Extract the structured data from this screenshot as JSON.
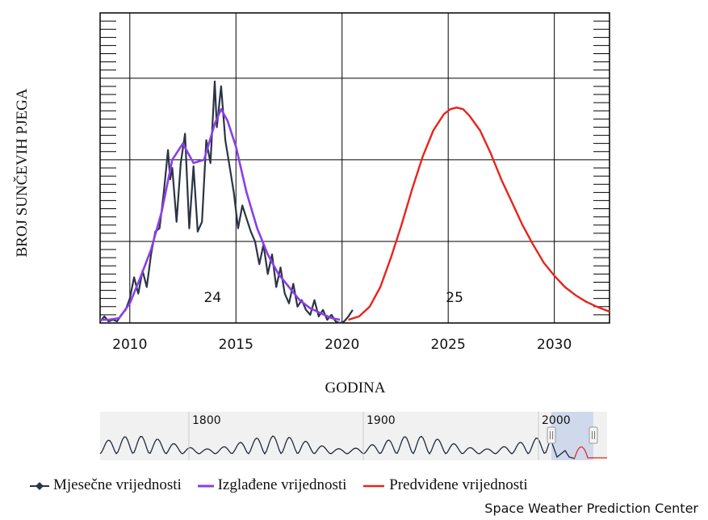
{
  "chart_data": {
    "type": "line",
    "xlabel": "GODINA",
    "ylabel": "BROJ SUNČEVIH PJEGA",
    "xlim": [
      2008.6,
      2032.6
    ],
    "ylim": [
      0,
      190
    ],
    "x_ticks": [
      "2010",
      "2015",
      "2020",
      "2025",
      "2030"
    ],
    "cycle_labels": [
      {
        "text": "24",
        "x": 2013.9
      },
      {
        "text": "25",
        "x": 2025.3
      }
    ],
    "series": [
      {
        "name": "Mjesečne vrijednosti",
        "color": "#2b3445",
        "x": [
          2008.6,
          2008.8,
          2009.0,
          2009.2,
          2009.4,
          2009.6,
          2009.8,
          2010.0,
          2010.2,
          2010.4,
          2010.6,
          2010.8,
          2011.0,
          2011.2,
          2011.4,
          2011.6,
          2011.8,
          2011.9,
          2012.0,
          2012.2,
          2012.4,
          2012.6,
          2012.8,
          2013.0,
          2013.2,
          2013.4,
          2013.6,
          2013.8,
          2014.0,
          2014.1,
          2014.3,
          2014.5,
          2014.7,
          2014.9,
          2015.1,
          2015.3,
          2015.5,
          2015.7,
          2015.9,
          2016.1,
          2016.3,
          2016.5,
          2016.7,
          2016.9,
          2017.1,
          2017.3,
          2017.5,
          2017.7,
          2017.9,
          2018.1,
          2018.3,
          2018.5,
          2018.7,
          2018.9,
          2019.1,
          2019.3,
          2019.5,
          2019.7,
          2019.9,
          2020.1,
          2020.3,
          2020.5
        ],
        "values": [
          1,
          4,
          1,
          2,
          1,
          5,
          8,
          15,
          28,
          18,
          32,
          22,
          42,
          56,
          58,
          80,
          106,
          88,
          95,
          62,
          98,
          116,
          58,
          96,
          56,
          62,
          112,
          98,
          148,
          120,
          145,
          112,
          96,
          80,
          58,
          72,
          64,
          56,
          50,
          36,
          48,
          30,
          42,
          22,
          34,
          18,
          12,
          24,
          10,
          14,
          8,
          5,
          14,
          4,
          8,
          2,
          5,
          1,
          0,
          1,
          4,
          8
        ]
      },
      {
        "name": "Izglađene vrijednosti",
        "color": "#8a3fe8",
        "x": [
          2008.6,
          2009.0,
          2009.5,
          2010.0,
          2010.5,
          2011.0,
          2011.5,
          2012.0,
          2012.5,
          2013.0,
          2013.5,
          2014.0,
          2014.3,
          2014.6,
          2015.0,
          2015.5,
          2016.0,
          2016.5,
          2017.0,
          2017.5,
          2018.0,
          2018.5,
          2019.0,
          2019.5,
          2019.9
        ],
        "values": [
          2,
          2,
          3,
          12,
          28,
          45,
          68,
          100,
          110,
          98,
          100,
          122,
          131,
          124,
          108,
          80,
          58,
          42,
          30,
          22,
          14,
          9,
          6,
          3,
          2
        ]
      },
      {
        "name": "Predviđene vrijednosti",
        "color": "#e8231d",
        "x": [
          2020.3,
          2020.8,
          2021.3,
          2021.8,
          2022.3,
          2022.8,
          2023.3,
          2023.8,
          2024.3,
          2024.8,
          2025.1,
          2025.4,
          2025.7,
          2026.0,
          2026.5,
          2027.0,
          2027.5,
          2028.0,
          2028.5,
          2029.0,
          2029.5,
          2030.0,
          2030.5,
          2031.0,
          2031.5,
          2032.0,
          2032.6
        ],
        "values": [
          2,
          4,
          10,
          22,
          40,
          60,
          82,
          102,
          118,
          128,
          131,
          132,
          131,
          127,
          118,
          104,
          88,
          74,
          60,
          48,
          37,
          29,
          22,
          17,
          13,
          10,
          7
        ]
      }
    ]
  },
  "navigator": {
    "labels": [
      "1800",
      "1900",
      "2000"
    ]
  },
  "legend": {
    "monthly": "Mjesečne vrijednosti",
    "smoothed": "Izglađene vrijednosti",
    "predicted": "Predviđene vrijednosti"
  },
  "credit": "Space Weather Prediction Center"
}
